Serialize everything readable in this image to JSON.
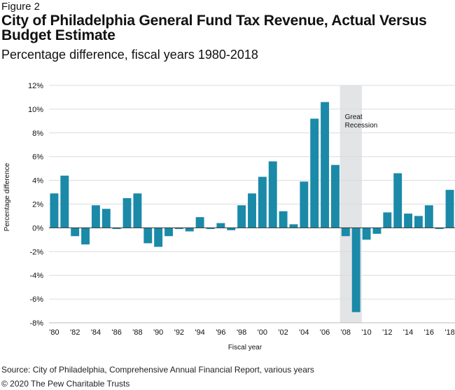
{
  "figure_label": "Figure 2",
  "title": "City of Philadelphia General Fund Tax Revenue, Actual Versus Budget Estimate",
  "subtitle": "Percentage difference, fiscal years 1980-2018",
  "source": "Source: City of Philadelphia, Comprehensive Annual Financial Report, various years",
  "copyright": "© 2020 The Pew Charitable Trusts",
  "chart_data": {
    "type": "bar",
    "xlabel": "Fiscal year",
    "ylabel": "Percentage difference",
    "ylim": [
      -8,
      12
    ],
    "yticks": [
      -8,
      -6,
      -4,
      -2,
      0,
      2,
      4,
      6,
      8,
      10,
      12
    ],
    "ytick_labels": [
      "-8%",
      "-6%",
      "-4%",
      "-2%",
      "0%",
      "2%",
      "4%",
      "6%",
      "8%",
      "10%",
      "12%"
    ],
    "grid": true,
    "bar_color": "#1a8aa8",
    "years": [
      1980,
      1981,
      1982,
      1983,
      1984,
      1985,
      1986,
      1987,
      1988,
      1989,
      1990,
      1991,
      1992,
      1993,
      1994,
      1995,
      1996,
      1997,
      1998,
      1999,
      2000,
      2001,
      2002,
      2003,
      2004,
      2005,
      2006,
      2007,
      2008,
      2009,
      2010,
      2011,
      2012,
      2013,
      2014,
      2015,
      2016,
      2017,
      2018
    ],
    "values": [
      2.9,
      4.4,
      -0.7,
      -1.4,
      1.9,
      1.6,
      -0.1,
      2.5,
      2.9,
      -1.3,
      -1.6,
      -0.7,
      -0.1,
      -0.3,
      0.9,
      -0.1,
      0.4,
      -0.2,
      1.9,
      2.9,
      4.3,
      5.6,
      1.4,
      0.3,
      3.9,
      9.2,
      10.6,
      5.3,
      -0.7,
      -7.1,
      -1.0,
      -0.5,
      1.3,
      4.6,
      1.2,
      1.0,
      1.9,
      -0.1,
      3.2
    ],
    "xtick_labels": [
      {
        "year": 1980,
        "label": "'80"
      },
      {
        "year": 1982,
        "label": "'82"
      },
      {
        "year": 1984,
        "label": "'84"
      },
      {
        "year": 1986,
        "label": "'86"
      },
      {
        "year": 1988,
        "label": "'88"
      },
      {
        "year": 1990,
        "label": "'90"
      },
      {
        "year": 1992,
        "label": "'92"
      },
      {
        "year": 1994,
        "label": "'94"
      },
      {
        "year": 1996,
        "label": "'96"
      },
      {
        "year": 1998,
        "label": "'98"
      },
      {
        "year": 2000,
        "label": "'00"
      },
      {
        "year": 2002,
        "label": "'02"
      },
      {
        "year": 2004,
        "label": "'04"
      },
      {
        "year": 2006,
        "label": "'06"
      },
      {
        "year": 2008,
        "label": "'08"
      },
      {
        "year": 2010,
        "label": "'10"
      },
      {
        "year": 2012,
        "label": "'12"
      },
      {
        "year": 2014,
        "label": "'14"
      },
      {
        "year": 2016,
        "label": "'16"
      },
      {
        "year": 2018,
        "label": "'18"
      }
    ],
    "shaded_region": {
      "from_year": 2008,
      "to_year": 2009,
      "label_lines": [
        "Great",
        "Recession"
      ],
      "color": "#e3e4e5"
    }
  }
}
